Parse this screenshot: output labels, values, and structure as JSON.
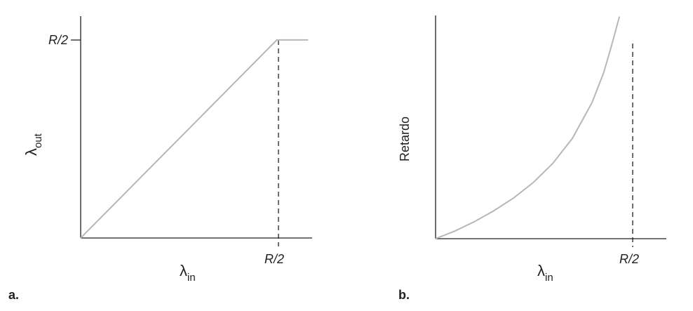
{
  "chart_data": [
    {
      "type": "line",
      "panel_label": "a.",
      "xlabel": {
        "symbol": "λ",
        "subscript": "in"
      },
      "ylabel": {
        "symbol": "λ",
        "subscript": "out"
      },
      "x_tick_label": "R/2",
      "y_tick_label": "R/2",
      "xlim": [
        0,
        0.59
      ],
      "ylim": [
        0,
        0.56
      ],
      "series": [
        {
          "color": "#b7b7b7",
          "x": [
            0,
            0.5,
            0.58
          ],
          "y": [
            0,
            0.5,
            0.5
          ]
        }
      ],
      "guide_line": {
        "style": "dashed",
        "x": 0.5
      },
      "grid": false
    },
    {
      "type": "line",
      "panel_label": "b.",
      "xlabel": {
        "symbol": "λ",
        "subscript": "in"
      },
      "ylabel": {
        "text": "Retardo"
      },
      "x_tick_label": "R/2",
      "xlim": [
        0,
        0.59
      ],
      "ylim": [
        0,
        1
      ],
      "series": [
        {
          "color": "#b7b7b7",
          "x": [
            0,
            0.05,
            0.1,
            0.15,
            0.2,
            0.25,
            0.3,
            0.35,
            0.4,
            0.43,
            0.45,
            0.46,
            0.47
          ],
          "y": [
            0,
            0.035,
            0.077,
            0.126,
            0.183,
            0.252,
            0.338,
            0.45,
            0.61,
            0.745,
            0.865,
            0.93,
            0.995
          ]
        }
      ],
      "asymptote": {
        "style": "dashed",
        "x": 0.5
      },
      "grid": false
    }
  ]
}
